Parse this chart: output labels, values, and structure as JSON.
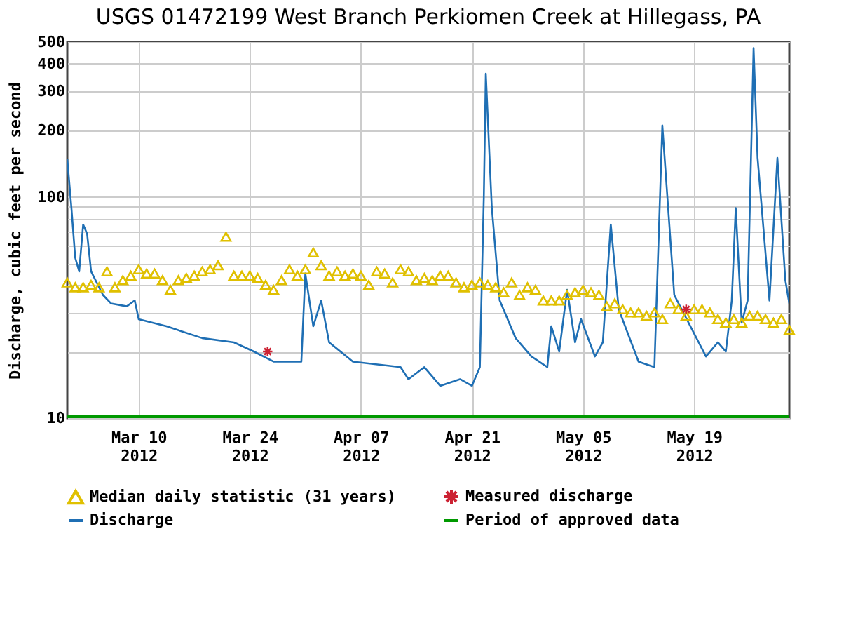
{
  "chart_data": {
    "type": "line",
    "title": "USGS 01472199 West Branch Perkiomen Creek at Hillegass, PA",
    "ylabel": "Discharge, cubic feet per second",
    "log": "y",
    "grid": true,
    "legend": "bottom",
    "xlim": [
      "2012-03-01",
      "2012-05-31"
    ],
    "xticks": [
      {
        "value": "2012-03-10",
        "label": "Mar 10\n2012"
      },
      {
        "value": "2012-03-24",
        "label": "Mar 24\n2012"
      },
      {
        "value": "2012-04-07",
        "label": "Apr 07\n2012"
      },
      {
        "value": "2012-04-21",
        "label": "Apr 21\n2012"
      },
      {
        "value": "2012-05-05",
        "label": "May 05\n2012"
      },
      {
        "value": "2012-05-19",
        "label": "May 19\n2012"
      }
    ],
    "ylim": [
      10,
      500
    ],
    "yticks": [
      10,
      {
        "value": 20,
        "label": null
      },
      {
        "value": 30,
        "label": null
      },
      {
        "value": 40,
        "label": null
      },
      {
        "value": 50,
        "label": null
      },
      {
        "value": 60,
        "label": null
      },
      {
        "value": 70,
        "label": null
      },
      {
        "value": 80,
        "label": null
      },
      {
        "value": 90,
        "label": null
      },
      100,
      200,
      300,
      400,
      500
    ],
    "series": [
      {
        "name": "Median daily statistic (31 years)",
        "type": "scatter",
        "marker": "triangle",
        "color": "#e0c000",
        "x": [
          "2012-03-01",
          "2012-03-02",
          "2012-03-03",
          "2012-03-04",
          "2012-03-05",
          "2012-03-06",
          "2012-03-07",
          "2012-03-08",
          "2012-03-09",
          "2012-03-10",
          "2012-03-11",
          "2012-03-12",
          "2012-03-13",
          "2012-03-14",
          "2012-03-15",
          "2012-03-16",
          "2012-03-17",
          "2012-03-18",
          "2012-03-19",
          "2012-03-20",
          "2012-03-21",
          "2012-03-22",
          "2012-03-23",
          "2012-03-24",
          "2012-03-25",
          "2012-03-26",
          "2012-03-27",
          "2012-03-28",
          "2012-03-29",
          "2012-03-30",
          "2012-03-31",
          "2012-04-01",
          "2012-04-02",
          "2012-04-03",
          "2012-04-04",
          "2012-04-05",
          "2012-04-06",
          "2012-04-07",
          "2012-04-08",
          "2012-04-09",
          "2012-04-10",
          "2012-04-11",
          "2012-04-12",
          "2012-04-13",
          "2012-04-14",
          "2012-04-15",
          "2012-04-16",
          "2012-04-17",
          "2012-04-18",
          "2012-04-19",
          "2012-04-20",
          "2012-04-21",
          "2012-04-22",
          "2012-04-23",
          "2012-04-24",
          "2012-04-25",
          "2012-04-26",
          "2012-04-27",
          "2012-04-28",
          "2012-04-29",
          "2012-04-30",
          "2012-05-01",
          "2012-05-02",
          "2012-05-03",
          "2012-05-04",
          "2012-05-05",
          "2012-05-06",
          "2012-05-07",
          "2012-05-08",
          "2012-05-09",
          "2012-05-10",
          "2012-05-11",
          "2012-05-12",
          "2012-05-13",
          "2012-05-14",
          "2012-05-15",
          "2012-05-16",
          "2012-05-17",
          "2012-05-18",
          "2012-05-19",
          "2012-05-20",
          "2012-05-21",
          "2012-05-22",
          "2012-05-23",
          "2012-05-24",
          "2012-05-25",
          "2012-05-26",
          "2012-05-27",
          "2012-05-28",
          "2012-05-29",
          "2012-05-30",
          "2012-05-31"
        ],
        "values": [
          41,
          39,
          39,
          40,
          39,
          46,
          39,
          42,
          44,
          47,
          45,
          45,
          42,
          38,
          42,
          43,
          44,
          46,
          47,
          49,
          66,
          44,
          44,
          44,
          43,
          40,
          38,
          42,
          47,
          44,
          47,
          56,
          49,
          44,
          46,
          44,
          45,
          44,
          40,
          46,
          45,
          41,
          47,
          46,
          42,
          43,
          42,
          44,
          44,
          41,
          39,
          40,
          41,
          40,
          39,
          37,
          41,
          36,
          39,
          38,
          34,
          34,
          34,
          36,
          37,
          38,
          37,
          36,
          32,
          33,
          31,
          30,
          30,
          29,
          30,
          28,
          33,
          31,
          29,
          31,
          31,
          30,
          28,
          27,
          28,
          27,
          29,
          29,
          28,
          27,
          28,
          25
        ]
      },
      {
        "name": "Measured discharge",
        "type": "scatter",
        "marker": "cross",
        "color": "#cc2233",
        "x": [
          "2012-03-26T06:00",
          "2012-05-18T00:00"
        ],
        "values": [
          20,
          31
        ]
      },
      {
        "name": "Discharge",
        "color": "#1f6fb4",
        "x": [
          "2012-03-01T00:00",
          "2012-03-01T12:00",
          "2012-03-02T00:00",
          "2012-03-02T12:00",
          "2012-03-03T00:00",
          "2012-03-03T12:00",
          "2012-03-04T00:00",
          "2012-03-05T12:00",
          "2012-03-06T12:00",
          "2012-03-08T12:00",
          "2012-03-09T12:00",
          "2012-03-10T00:00",
          "2012-03-13T12:00",
          "2012-03-18T00:00",
          "2012-03-22T00:00",
          "2012-03-24T12:00",
          "2012-03-27T00:00",
          "2012-03-30T12:00",
          "2012-03-31T00:00",
          "2012-04-01T00:00",
          "2012-04-02T00:00",
          "2012-04-03T00:00",
          "2012-04-06T00:00",
          "2012-04-12T00:00",
          "2012-04-13T00:00",
          "2012-04-15T00:00",
          "2012-04-17T00:00",
          "2012-04-19T12:00",
          "2012-04-21T00:00",
          "2012-04-22T00:00",
          "2012-04-22T12:00",
          "2012-04-22T18:00",
          "2012-04-23T12:00",
          "2012-04-24T12:00",
          "2012-04-26T12:00",
          "2012-04-28T12:00",
          "2012-04-30T12:00",
          "2012-05-01T00:00",
          "2012-05-02T00:00",
          "2012-05-03T00:00",
          "2012-05-04T00:00",
          "2012-05-04T18:00",
          "2012-05-06T12:00",
          "2012-05-07T12:00",
          "2012-05-08T12:00",
          "2012-05-09T12:00",
          "2012-05-12T00:00",
          "2012-05-14T00:00",
          "2012-05-15T00:00",
          "2012-05-16T12:00",
          "2012-05-20T12:00",
          "2012-05-22T00:00",
          "2012-05-23T00:00",
          "2012-05-23T18:00",
          "2012-05-24T06:00",
          "2012-05-25T00:00",
          "2012-05-25T18:00",
          "2012-05-26T12:00",
          "2012-05-27T00:00",
          "2012-05-28T12:00",
          "2012-05-29T12:00",
          "2012-05-30T12:00",
          "2012-05-31T00:00"
        ],
        "values": [
          148,
          91,
          53,
          46,
          75,
          68,
          46,
          36,
          33,
          32,
          34,
          28,
          26,
          23,
          22,
          20,
          18,
          18,
          45,
          26,
          34,
          22,
          18,
          17,
          15,
          17,
          14,
          15,
          14,
          17,
          100,
          360,
          90,
          34,
          23,
          19,
          17,
          26,
          20,
          38,
          22,
          28,
          19,
          22,
          75,
          31,
          18,
          17,
          210,
          36,
          19,
          22,
          20,
          34,
          89,
          27,
          34,
          470,
          150,
          34,
          150,
          42,
          33
        ]
      },
      {
        "name": "Period of approved data",
        "type": "line",
        "color": "#009900",
        "x": [
          "2012-03-01",
          "2012-05-31"
        ],
        "values": [
          10,
          10
        ]
      }
    ]
  }
}
